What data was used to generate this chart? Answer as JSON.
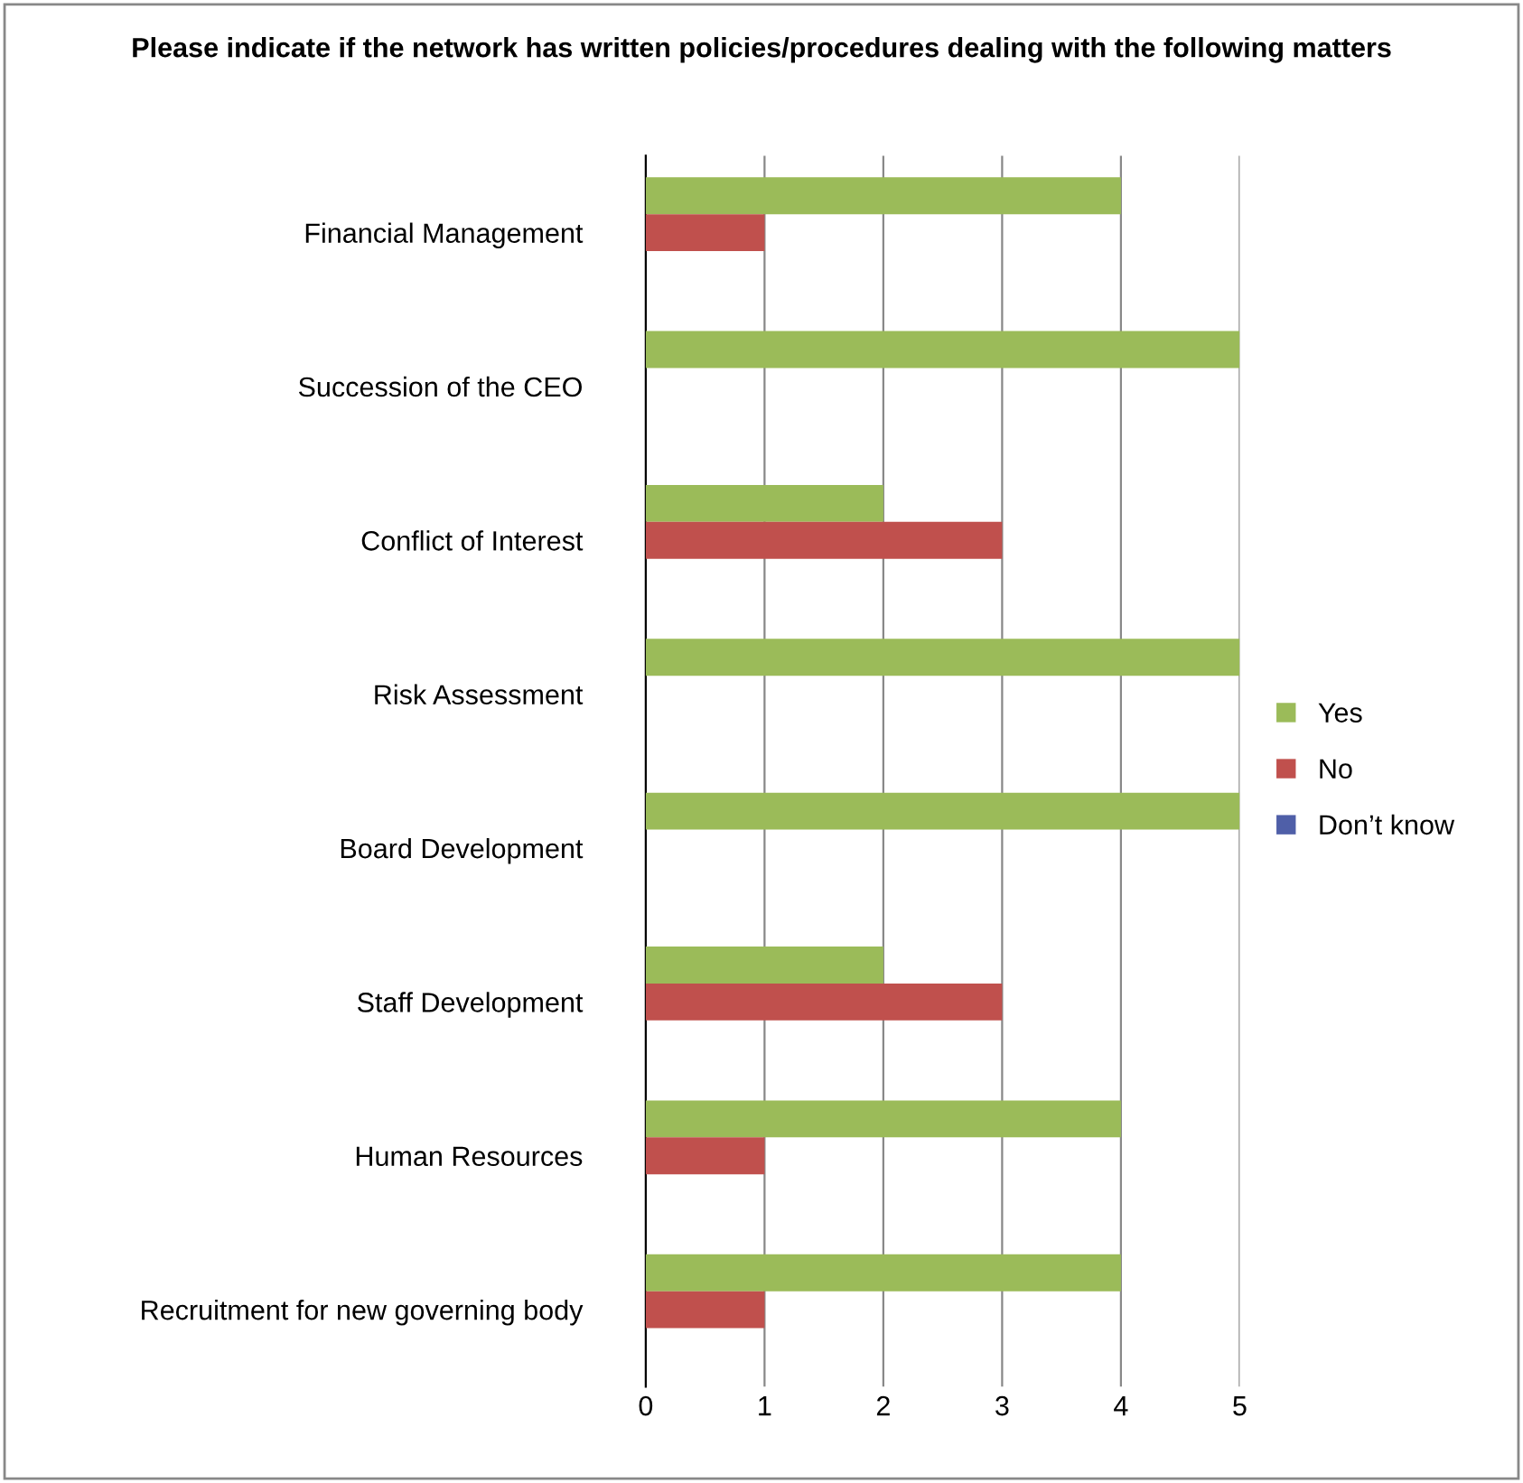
{
  "chart_data": {
    "type": "bar",
    "orientation": "horizontal",
    "title": "Please indicate if the network has written policies/procedures dealing with the following matters",
    "categories": [
      "Financial Management",
      "Succession of the CEO",
      "Conflict of Interest",
      "Risk Assessment",
      "Board Development",
      "Staff Development",
      "Human Resources",
      "Recruitment for new governing body"
    ],
    "series": [
      {
        "name": "Yes",
        "color": "#9bbb59",
        "values": [
          4,
          5,
          2,
          5,
          5,
          2,
          4,
          4
        ]
      },
      {
        "name": "No",
        "color": "#c0504d",
        "values": [
          1,
          0,
          3,
          0,
          0,
          3,
          1,
          1
        ]
      },
      {
        "name": "Don’t know",
        "color": "#4f5fa8",
        "values": [
          0,
          0,
          0,
          0,
          0,
          0,
          0,
          0
        ]
      }
    ],
    "xlim": [
      0,
      5
    ],
    "xticks": [
      0,
      1,
      2,
      3,
      4,
      5
    ],
    "grid": "x",
    "legend": "right"
  }
}
